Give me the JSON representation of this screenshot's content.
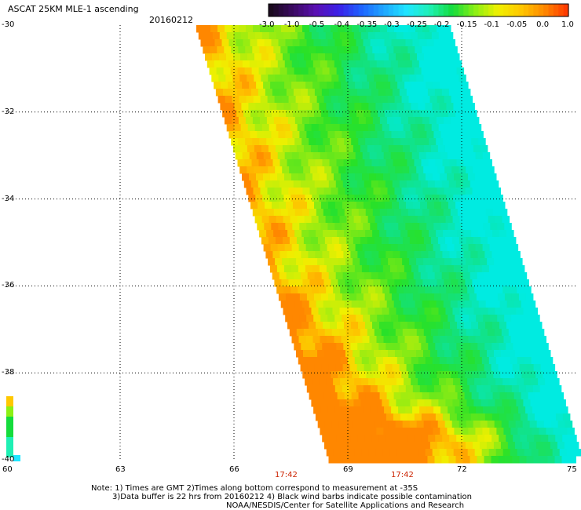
{
  "title": "ASCAT 25KM MLE-1 ascending",
  "date": "20160212",
  "colorbar": {
    "tick_labels": [
      "-3.0",
      "-1.0",
      "-0.5",
      "-0.4",
      "-0.35",
      "-0.3",
      "-0.25",
      "-0.2",
      "-0.15",
      "-0.1",
      "-0.05",
      "0.0",
      "1.0"
    ],
    "colors": [
      "#1a0a1e",
      "#3c0a64",
      "#5a10b4",
      "#3a20e8",
      "#1e64ff",
      "#1ea8ff",
      "#1ee6ff",
      "#1ef0b4",
      "#14dc3c",
      "#8cf014",
      "#f0f000",
      "#ffc800",
      "#ff8c00",
      "#ff3c00"
    ]
  },
  "lat_labels": [
    "-30",
    "-32",
    "-34",
    "-36",
    "-38",
    "-40"
  ],
  "lon_labels": [
    "60",
    "63",
    "66",
    "69",
    "72",
    "75"
  ],
  "times": [
    "17:42",
    "17:42"
  ],
  "notes": [
    "Note: 1) Times are GMT 2)Times along bottom correspond to measurement at -35S",
    "3)Data buffer is 22 hrs from 20160212 4) Black wind barbs indicate possible contamination",
    "NOAA/NESDIS/Center for Satellite Applications and Research"
  ]
}
